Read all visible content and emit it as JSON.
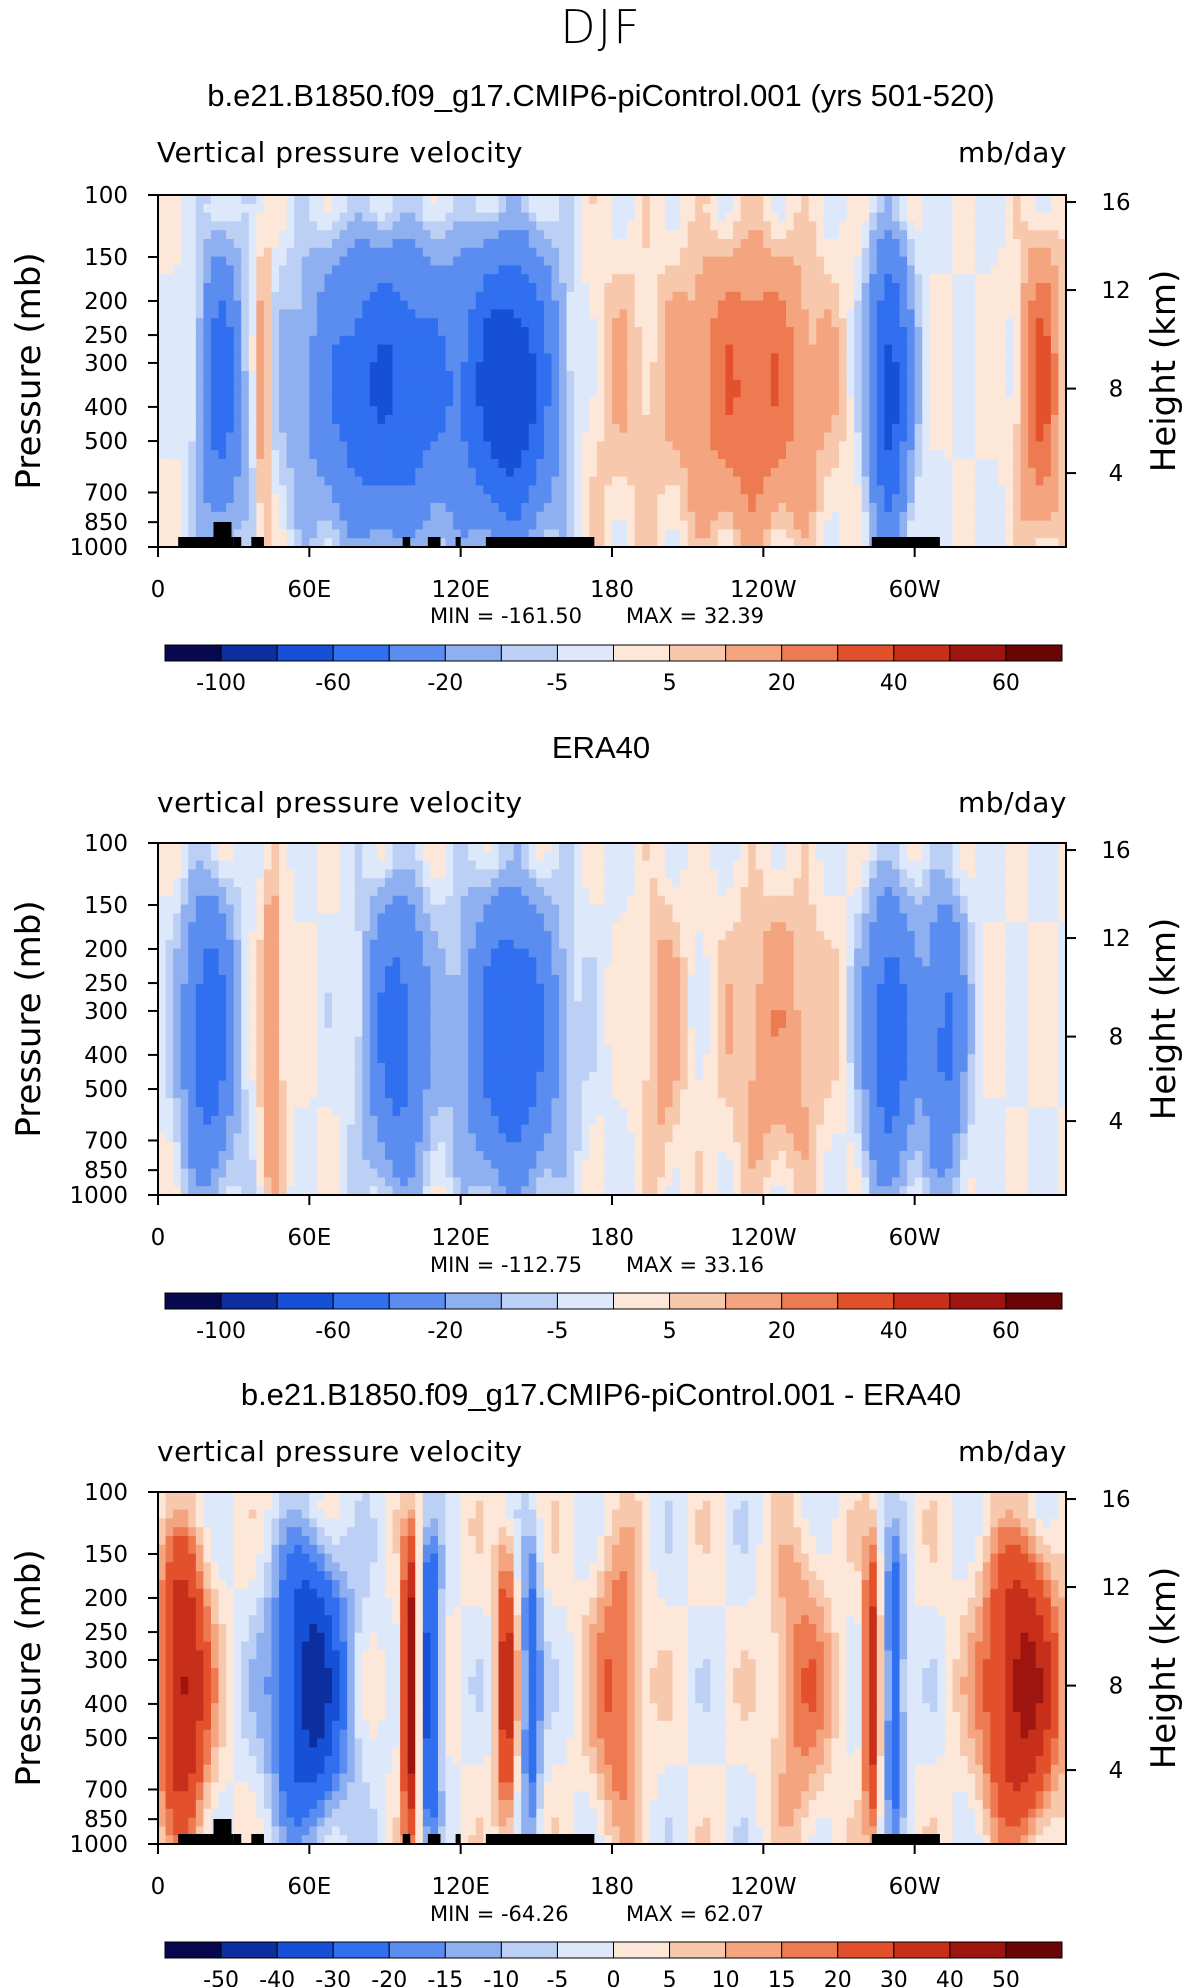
{
  "figure": {
    "season": "DJF"
  },
  "chart_data": [
    {
      "type": "contour",
      "title": "b.e21.B1850.f09_g17.CMIP6-piControl.001 (yrs 501-520)",
      "subtitle_left": "Vertical pressure velocity",
      "subtitle_right": "mb/day",
      "ylabel": "Pressure (mb)",
      "ylabel_right": "Height (km)",
      "x_ticks": [
        "0",
        "60E",
        "120E",
        "180",
        "120W",
        "60W"
      ],
      "y_ticks": [
        "100",
        "150",
        "200",
        "250",
        "300",
        "400",
        "500",
        "700",
        "850",
        "1000"
      ],
      "y_ticks_right": [
        "16",
        "12",
        "8",
        "4"
      ],
      "ylim": [
        1000,
        100
      ],
      "y_scale": "log",
      "min_label": "MIN = -161.50",
      "max_label": "MAX = 32.39",
      "min": -161.5,
      "max": 32.39,
      "colorbar": {
        "levels": [
          -100,
          -80,
          -60,
          -40,
          -20,
          -10,
          -5,
          0,
          5,
          10,
          20,
          30,
          40,
          50,
          60
        ],
        "labels": [
          "-100",
          "-60",
          "-20",
          "-5",
          "5",
          "20",
          "40",
          "60"
        ]
      }
    },
    {
      "type": "contour",
      "title": "ERA40",
      "subtitle_left": "vertical pressure velocity",
      "subtitle_right": "mb/day",
      "ylabel": "Pressure (mb)",
      "ylabel_right": "Height (km)",
      "x_ticks": [
        "0",
        "60E",
        "120E",
        "180",
        "120W",
        "60W"
      ],
      "y_ticks": [
        "100",
        "150",
        "200",
        "250",
        "300",
        "400",
        "500",
        "700",
        "850",
        "1000"
      ],
      "y_ticks_right": [
        "16",
        "12",
        "8",
        "4"
      ],
      "ylim": [
        1000,
        100
      ],
      "y_scale": "log",
      "min_label": "MIN = -112.75",
      "max_label": "MAX = 33.16",
      "min": -112.75,
      "max": 33.16,
      "colorbar": {
        "levels": [
          -100,
          -80,
          -60,
          -40,
          -20,
          -10,
          -5,
          0,
          5,
          10,
          20,
          30,
          40,
          50,
          60
        ],
        "labels": [
          "-100",
          "-60",
          "-20",
          "-5",
          "5",
          "20",
          "40",
          "60"
        ]
      }
    },
    {
      "type": "contour",
      "title": "b.e21.B1850.f09_g17.CMIP6-piControl.001 - ERA40",
      "subtitle_left": "vertical pressure velocity",
      "subtitle_right": "mb/day",
      "ylabel": "Pressure (mb)",
      "ylabel_right": "Height (km)",
      "x_ticks": [
        "0",
        "60E",
        "120E",
        "180",
        "120W",
        "60W"
      ],
      "y_ticks": [
        "100",
        "150",
        "200",
        "250",
        "300",
        "400",
        "500",
        "700",
        "850",
        "1000"
      ],
      "y_ticks_right": [
        "16",
        "12",
        "8",
        "4"
      ],
      "ylim": [
        1000,
        100
      ],
      "y_scale": "log",
      "min_label": "MIN = -64.26",
      "max_label": "MAX = 62.07",
      "min": -64.26,
      "max": 62.07,
      "colorbar": {
        "levels": [
          -50,
          -40,
          -30,
          -20,
          -15,
          -10,
          -5,
          0,
          5,
          10,
          15,
          20,
          30,
          40,
          50
        ],
        "labels": [
          "-50",
          "-40",
          "-30",
          "-20",
          "-15",
          "-10",
          "-5",
          "0",
          "5",
          "10",
          "15",
          "20",
          "30",
          "40",
          "50"
        ]
      }
    }
  ],
  "palette": [
    "#08084e",
    "#0c2e9e",
    "#1650d6",
    "#2f6ff0",
    "#5b8df0",
    "#8eaff0",
    "#bcd0f5",
    "#dde9fa",
    "#fde7d8",
    "#f8c8ac",
    "#f4a47f",
    "#ee7a52",
    "#e2502c",
    "#c72f1b",
    "#9e1510",
    "#6b0606"
  ]
}
